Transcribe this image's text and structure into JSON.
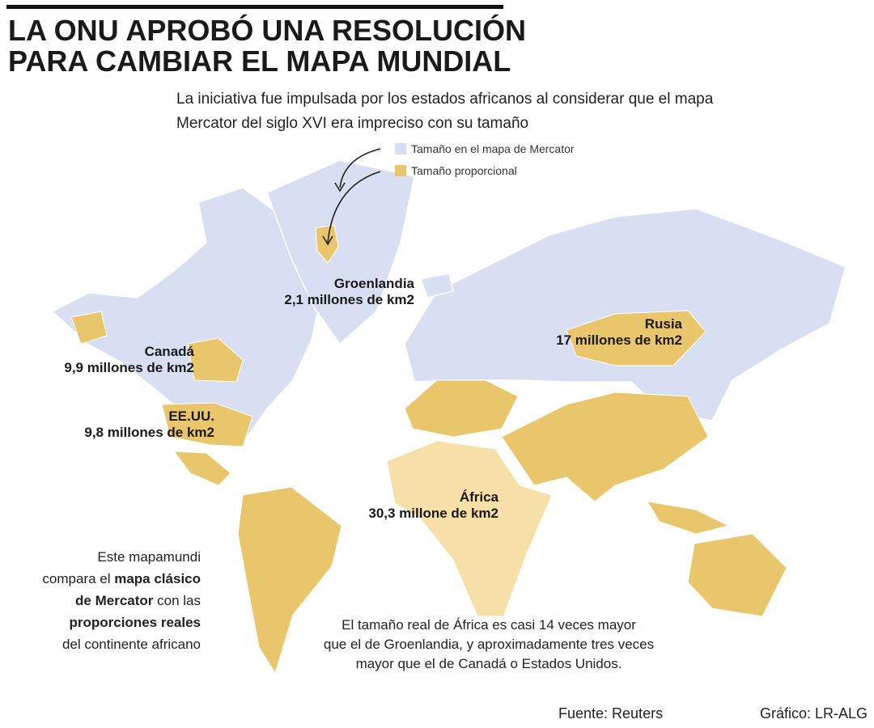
{
  "header": {
    "title_lines": [
      "LA ONU APROBÓ UNA RESOLUCIÓN",
      "PARA CAMBIAR EL MAPA MUNDIAL"
    ],
    "subtitle_lines": [
      "La iniciativa fue impulsada por los estados africanos al considerar que el mapa",
      "Mercator del siglo XVI era impreciso con su tamaño"
    ]
  },
  "legend": {
    "items": [
      {
        "label": "Tamaño en el mapa de Mercator",
        "color": "#d9dff2"
      },
      {
        "label": "Tamaño proporcional",
        "color": "#e9c56c"
      }
    ]
  },
  "labels": [
    {
      "name": "Groenlandia",
      "area": "2,1 millones de km2"
    },
    {
      "name": "Rusia",
      "area": "17 millones de km2"
    },
    {
      "name": "Canadá",
      "area": "9,9 millones de km2"
    },
    {
      "name": "EE.UU.",
      "area": "9,8 millones de km2"
    },
    {
      "name": "África",
      "area": "30,3 millone de km2"
    }
  ],
  "side_note": {
    "lines": [
      [
        {
          "text": "Este mapamundi",
          "bold": false
        }
      ],
      [
        {
          "text": "compara el ",
          "bold": false
        },
        {
          "text": "mapa clásico",
          "bold": true
        }
      ],
      [
        {
          "text": "de Mercator",
          "bold": true
        },
        {
          "text": " con las",
          "bold": false
        }
      ],
      [
        {
          "text": "proporciones reales",
          "bold": true
        }
      ],
      [
        {
          "text": "del continente africano",
          "bold": false
        }
      ]
    ]
  },
  "bottom_note": {
    "lines": [
      "El tamaño real de África es casi 14 veces mayor",
      "que el de Groenlandia, y aproximadamente tres veces",
      "mayor que el de Canadá o Estados Unidos."
    ]
  },
  "footer": {
    "source": "Fuente: Reuters",
    "credit": "Gráfico: LR-ALG"
  }
}
